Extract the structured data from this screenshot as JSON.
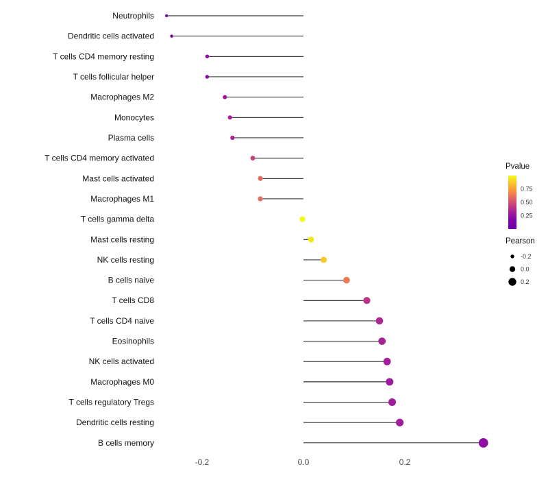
{
  "chart_data": {
    "type": "lollipop",
    "title": "",
    "xlabel": "",
    "ylabel": "",
    "xlim": [
      -0.31,
      0.38
    ],
    "x_ticks": [
      -0.2,
      0.0,
      0.2
    ],
    "x_tick_labels": [
      "-0.2",
      "0.0",
      "0.2"
    ],
    "grid": "off",
    "categories": [
      "Neutrophils",
      "Dendritic cells activated",
      "T cells CD4 memory resting",
      "T cells follicular helper",
      "Macrophages M2",
      "Monocytes",
      "Plasma cells",
      "T cells CD4 memory activated",
      "Mast cells activated",
      "Macrophages M1",
      "T cells gamma delta",
      "Mast cells resting",
      "NK cells resting",
      "B cells naive",
      "T cells CD8",
      "T cells CD4 naive",
      "Eosinophils",
      "NK cells activated",
      "Macrophages M0",
      "T cells regulatory  Tregs",
      "Dendritic cells resting",
      "B cells memory"
    ],
    "series": [
      {
        "name": "Pearson",
        "values": [
          -0.27,
          -0.26,
          -0.19,
          -0.19,
          -0.155,
          -0.145,
          -0.14,
          -0.1,
          -0.085,
          -0.085,
          -0.002,
          0.015,
          0.04,
          0.085,
          0.125,
          0.15,
          0.155,
          0.165,
          0.17,
          0.175,
          0.19,
          0.355
        ]
      }
    ],
    "point_colors": [
      "#7E03A8",
      "#7E03A8",
      "#8F0DA4",
      "#8F0DA4",
      "#9C179E",
      "#A62098",
      "#A82296",
      "#C5407E",
      "#E4695E",
      "#E4695E",
      "#F0F921",
      "#F4E61E",
      "#FBC828",
      "#ED7953",
      "#BB3488",
      "#AD2793",
      "#A82296",
      "#A62098",
      "#A01A9C",
      "#A01A9C",
      "#A21D9A",
      "#8F0DA4"
    ],
    "stem_color": "#000000",
    "legend": {
      "position": "right",
      "color_legend": {
        "title": "Pvalue",
        "tick_labels": [
          "0.75",
          "0.50",
          "0.25"
        ],
        "gradient_top_to_bottom": [
          "#F0F921",
          "#FDC328",
          "#F89441",
          "#E16462",
          "#C13B82",
          "#9C179E",
          "#7E03A8",
          "#6A00A8"
        ]
      },
      "size_legend": {
        "title": "Pearson",
        "tick_labels": [
          "-0.2",
          "0.0",
          "0.2"
        ],
        "tick_values": [
          -0.2,
          0.0,
          0.2
        ]
      }
    }
  }
}
